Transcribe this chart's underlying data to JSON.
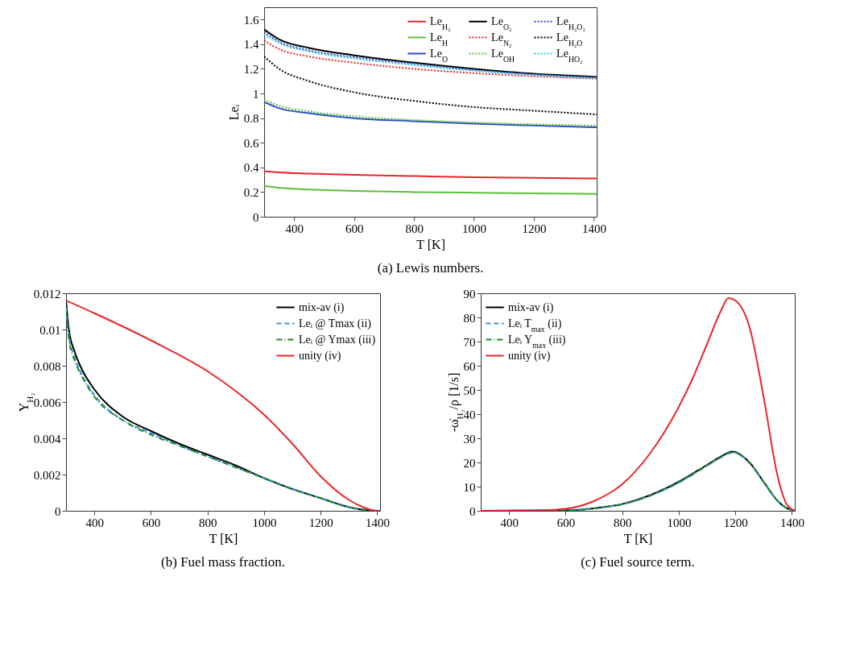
{
  "chart_data": [
    {
      "type": "line",
      "title": "(a) Lewis numbers.",
      "xlabel": "T [K]",
      "ylabel": "Leᵢ",
      "xlim": [
        300,
        1410
      ],
      "xticks": [
        400,
        600,
        800,
        1000,
        1200,
        1400
      ],
      "ylim": [
        0,
        1.7
      ],
      "yticks": [
        0,
        0.2,
        0.4,
        0.6,
        0.8,
        1,
        1.2,
        1.4,
        1.6
      ],
      "grid": false,
      "legend": "top right",
      "x": [
        300,
        350,
        450,
        600,
        800,
        1000,
        1200,
        1410
      ],
      "series": [
        {
          "name": "Le$_{H₂}$",
          "color": "#e8262a",
          "line_style": "solid",
          "values": [
            0.37,
            0.36,
            0.35,
            0.34,
            0.33,
            0.32,
            0.315,
            0.31
          ]
        },
        {
          "name": "Le$_{H}$",
          "color": "#5cbf3a",
          "line_style": "solid",
          "values": [
            0.25,
            0.235,
            0.22,
            0.21,
            0.2,
            0.195,
            0.19,
            0.185
          ]
        },
        {
          "name": "Le$_{O}$",
          "color": "#2b4fc0",
          "line_style": "solid",
          "values": [
            0.93,
            0.88,
            0.84,
            0.8,
            0.775,
            0.755,
            0.74,
            0.725
          ]
        },
        {
          "name": "Le$_{O₂}$",
          "color": "#000000",
          "line_style": "solid",
          "values": [
            1.52,
            1.44,
            1.37,
            1.31,
            1.25,
            1.2,
            1.16,
            1.135
          ]
        },
        {
          "name": "Le$_{N₂}$",
          "color": "#e8262a",
          "line_style": "dotted",
          "values": [
            1.43,
            1.36,
            1.3,
            1.25,
            1.2,
            1.165,
            1.14,
            1.12
          ]
        },
        {
          "name": "Le$_{OH}$",
          "color": "#5cbf3a",
          "line_style": "dotted",
          "values": [
            0.95,
            0.9,
            0.855,
            0.815,
            0.785,
            0.765,
            0.75,
            0.74
          ]
        },
        {
          "name": "Le$_{H₂O₂}$",
          "color": "#2b4fc0",
          "line_style": "dotted",
          "values": [
            1.5,
            1.42,
            1.35,
            1.295,
            1.24,
            1.19,
            1.155,
            1.13
          ]
        },
        {
          "name": "Le$_{H₂O}$",
          "color": "#000000",
          "line_style": "dotted",
          "values": [
            1.3,
            1.2,
            1.1,
            1.01,
            0.94,
            0.89,
            0.86,
            0.83
          ]
        },
        {
          "name": "Le$_{HO₂}$",
          "color": "#3cc4e6",
          "line_style": "dotted",
          "values": [
            1.48,
            1.41,
            1.34,
            1.285,
            1.23,
            1.185,
            1.15,
            1.125
          ]
        }
      ]
    },
    {
      "type": "line",
      "title": "(b) Fuel mass fraction.",
      "xlabel": "T [K]",
      "ylabel": "Y$_{H₂}$",
      "xlim": [
        300,
        1410
      ],
      "xticks": [
        400,
        600,
        800,
        1000,
        1200,
        1400
      ],
      "ylim": [
        0,
        0.012
      ],
      "yticks": [
        0,
        0.002,
        0.004,
        0.006,
        0.008,
        0.01,
        0.012
      ],
      "grid": false,
      "legend": "top right",
      "series": [
        {
          "name": "mix-av (i)",
          "color": "#000000",
          "line_style": "solid",
          "x": [
            300,
            310,
            330,
            350,
            400,
            500,
            600,
            700,
            800,
            900,
            1000,
            1100,
            1200,
            1300,
            1400,
            1410
          ],
          "values": [
            0.0116,
            0.01,
            0.0088,
            0.008,
            0.0067,
            0.0052,
            0.0044,
            0.0037,
            0.0031,
            0.0025,
            0.0018,
            0.0012,
            0.0007,
            0.0002,
            0,
            0
          ]
        },
        {
          "name": "Leᵢ @ Tmax (ii)",
          "color": "#3d8fe0",
          "line_style": "dashed",
          "x": [
            300,
            310,
            330,
            350,
            400,
            500,
            600,
            700,
            800,
            900,
            1000,
            1100,
            1200,
            1300,
            1400,
            1410
          ],
          "values": [
            0.0112,
            0.0097,
            0.0085,
            0.0077,
            0.0064,
            0.005,
            0.0043,
            0.0036,
            0.003,
            0.0024,
            0.0018,
            0.0012,
            0.0007,
            0.0002,
            0,
            0
          ]
        },
        {
          "name": "Leᵢ @ Ymax (iii)",
          "color": "#1a8a2e",
          "line_style": "dashdot",
          "x": [
            300,
            310,
            330,
            350,
            400,
            500,
            600,
            700,
            800,
            900,
            1000,
            1100,
            1200,
            1300,
            1400,
            1410
          ],
          "values": [
            0.011,
            0.0095,
            0.0083,
            0.0076,
            0.0063,
            0.005,
            0.0042,
            0.0036,
            0.003,
            0.0024,
            0.0018,
            0.0012,
            0.0007,
            0.0002,
            0,
            0
          ]
        },
        {
          "name": "unity (iv)",
          "color": "#e8262a",
          "line_style": "solid",
          "x": [
            300,
            400,
            600,
            800,
            900,
            1000,
            1100,
            1200,
            1300,
            1350,
            1400,
            1410
          ],
          "values": [
            0.0116,
            0.0109,
            0.0094,
            0.0077,
            0.0066,
            0.0053,
            0.0037,
            0.0019,
            0.0006,
            0.0002,
            0,
            0
          ]
        }
      ]
    },
    {
      "type": "line",
      "title": "(c) Fuel source term.",
      "xlabel": "T [K]",
      "ylabel": "-ω̇$_{H₂}$/ρ [1/s]",
      "xlim": [
        300,
        1410
      ],
      "xticks": [
        400,
        600,
        800,
        1000,
        1200,
        1400
      ],
      "ylim": [
        0,
        90
      ],
      "yticks": [
        0,
        10,
        20,
        30,
        40,
        50,
        60,
        70,
        80,
        90
      ],
      "grid": false,
      "legend": "top left",
      "series": [
        {
          "name": "mix-av (i)",
          "color": "#000000",
          "line_style": "solid",
          "x": [
            300,
            600,
            700,
            800,
            900,
            1000,
            1100,
            1150,
            1190,
            1250,
            1300,
            1350,
            1380,
            1410
          ],
          "values": [
            0,
            0.2,
            1,
            2.8,
            6.5,
            12,
            19,
            22.5,
            24.5,
            20,
            12,
            4,
            1.2,
            0
          ]
        },
        {
          "name": "Leᵢ T$_{max}$ (ii)",
          "color": "#3d8fe0",
          "line_style": "dashed",
          "x": [
            300,
            600,
            700,
            800,
            900,
            1000,
            1100,
            1150,
            1190,
            1250,
            1300,
            1350,
            1380,
            1410
          ],
          "values": [
            0,
            0.2,
            1,
            2.7,
            6.3,
            11.7,
            18.7,
            22.2,
            24.2,
            19.8,
            11.9,
            4,
            1.2,
            0
          ]
        },
        {
          "name": "Leᵢ Y$_{max}$ (iii)",
          "color": "#1a8a2e",
          "line_style": "dashdot",
          "x": [
            300,
            600,
            700,
            800,
            900,
            1000,
            1100,
            1150,
            1190,
            1250,
            1300,
            1350,
            1380,
            1410
          ],
          "values": [
            0,
            0.2,
            1,
            2.7,
            6.3,
            11.7,
            18.7,
            22.2,
            24.2,
            19.8,
            11.9,
            4,
            1.2,
            0
          ]
        },
        {
          "name": "unity (iv)",
          "color": "#e8262a",
          "line_style": "solid",
          "x": [
            300,
            500,
            600,
            700,
            800,
            900,
            1000,
            1050,
            1100,
            1150,
            1175,
            1200,
            1250,
            1300,
            1350,
            1380,
            1410
          ],
          "values": [
            0,
            0.1,
            0.8,
            4,
            11,
            24,
            43,
            55,
            69,
            83,
            88,
            87,
            76,
            47,
            14,
            3,
            0
          ]
        }
      ]
    }
  ]
}
